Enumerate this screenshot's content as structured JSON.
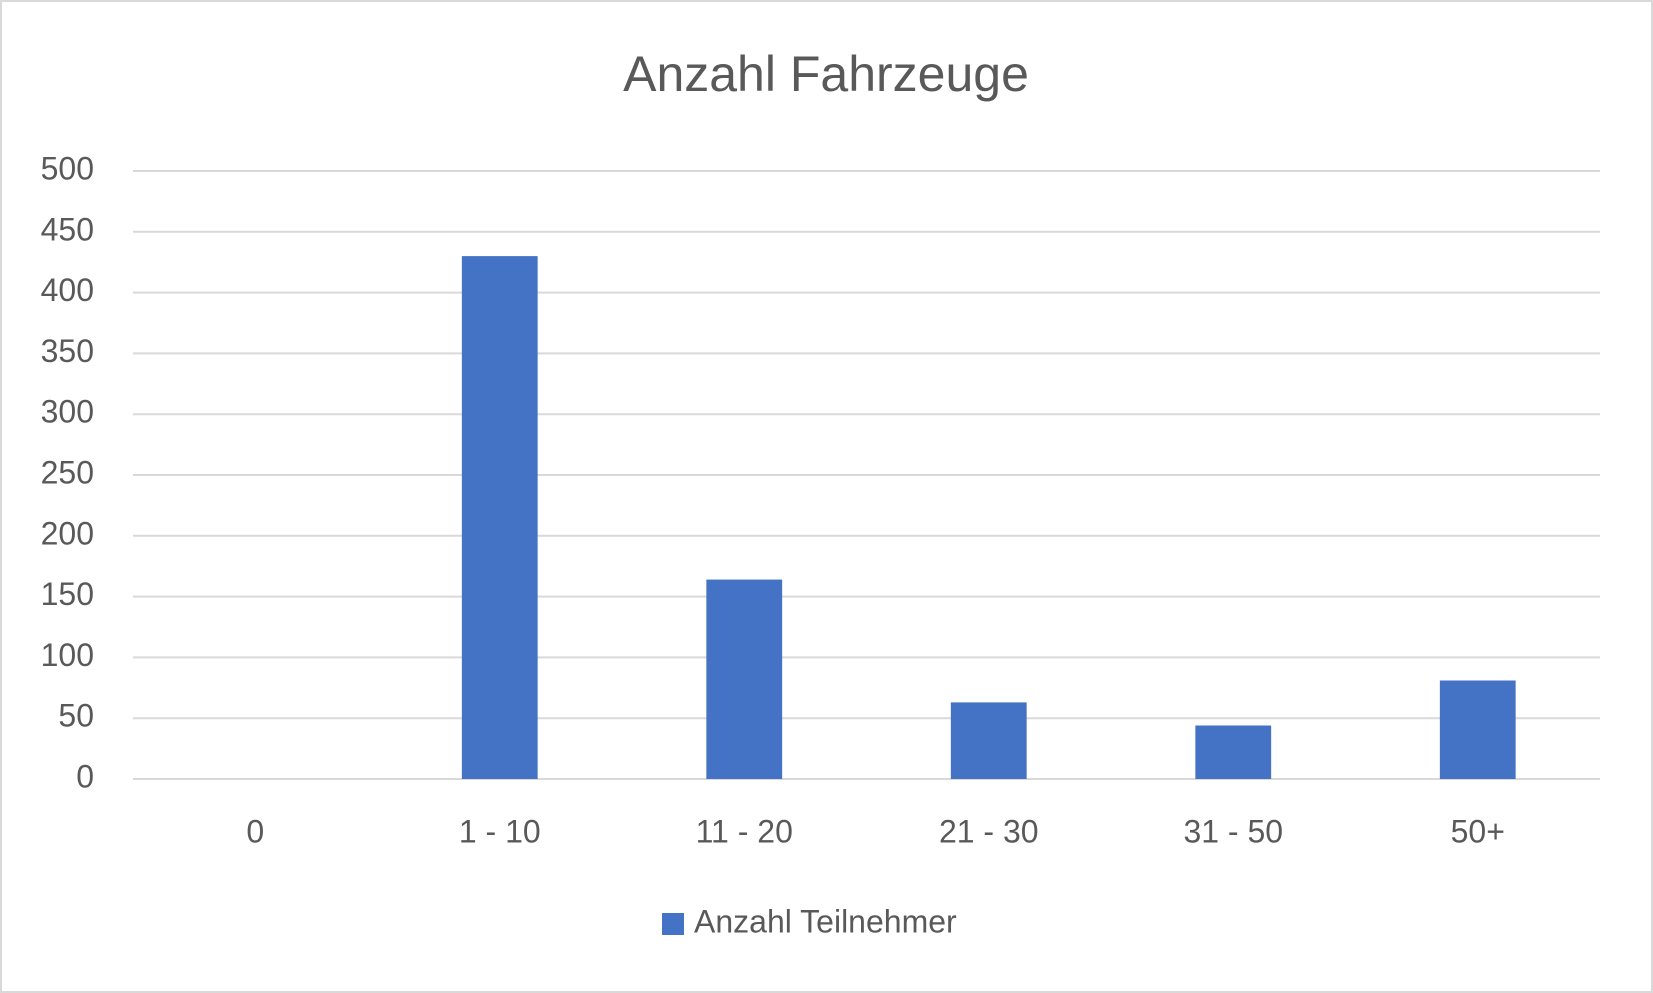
{
  "chart_data": {
    "type": "bar",
    "title": "Anzahl Fahrzeuge",
    "categories": [
      "0",
      "1 - 10",
      "11 - 20",
      "21 - 30",
      "31 - 50",
      "50+"
    ],
    "series": [
      {
        "name": "Anzahl Teilnehmer",
        "color": "#4472c4",
        "values": [
          0,
          430,
          164,
          63,
          44,
          81
        ]
      }
    ],
    "ylim": [
      0,
      500
    ],
    "yticks": [
      0,
      50,
      100,
      150,
      200,
      250,
      300,
      350,
      400,
      450,
      500
    ],
    "grid": true,
    "legend": "bottom"
  }
}
